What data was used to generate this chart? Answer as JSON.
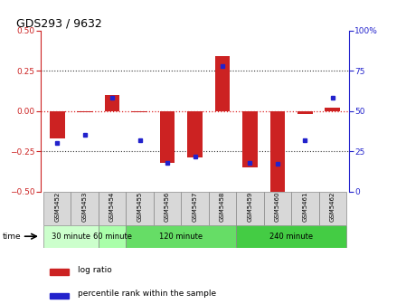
{
  "title": "GDS293 / 9632",
  "samples": [
    "GSM5452",
    "GSM5453",
    "GSM5454",
    "GSM5455",
    "GSM5456",
    "GSM5457",
    "GSM5458",
    "GSM5459",
    "GSM5460",
    "GSM5461",
    "GSM5462"
  ],
  "log_ratio": [
    -0.17,
    -0.01,
    0.1,
    -0.01,
    -0.32,
    -0.29,
    0.34,
    -0.35,
    -0.53,
    -0.02,
    0.02
  ],
  "percentile": [
    30,
    35,
    58,
    32,
    18,
    22,
    78,
    18,
    17,
    32,
    58
  ],
  "bar_color": "#cc2222",
  "dot_color": "#2222cc",
  "groups": [
    {
      "label": "30 minute",
      "start": 0,
      "end": 2,
      "color": "#ccffcc"
    },
    {
      "label": "60 minute",
      "start": 2,
      "end": 3,
      "color": "#aaffaa"
    },
    {
      "label": "120 minute",
      "start": 3,
      "end": 7,
      "color": "#66dd66"
    },
    {
      "label": "240 minute",
      "start": 7,
      "end": 11,
      "color": "#44cc44"
    }
  ],
  "ylim_left": [
    -0.5,
    0.5
  ],
  "ylim_right": [
    0,
    100
  ],
  "yticks_left": [
    -0.5,
    -0.25,
    0,
    0.25,
    0.5
  ],
  "yticks_right": [
    0,
    25,
    50,
    75,
    100
  ],
  "zero_line_color": "#dd2222",
  "dotted_line_color": "#333333",
  "background_color": "#ffffff",
  "legend_log_ratio": "log ratio",
  "legend_percentile": "percentile rank within the sample",
  "time_label": "time",
  "bar_width": 0.55
}
